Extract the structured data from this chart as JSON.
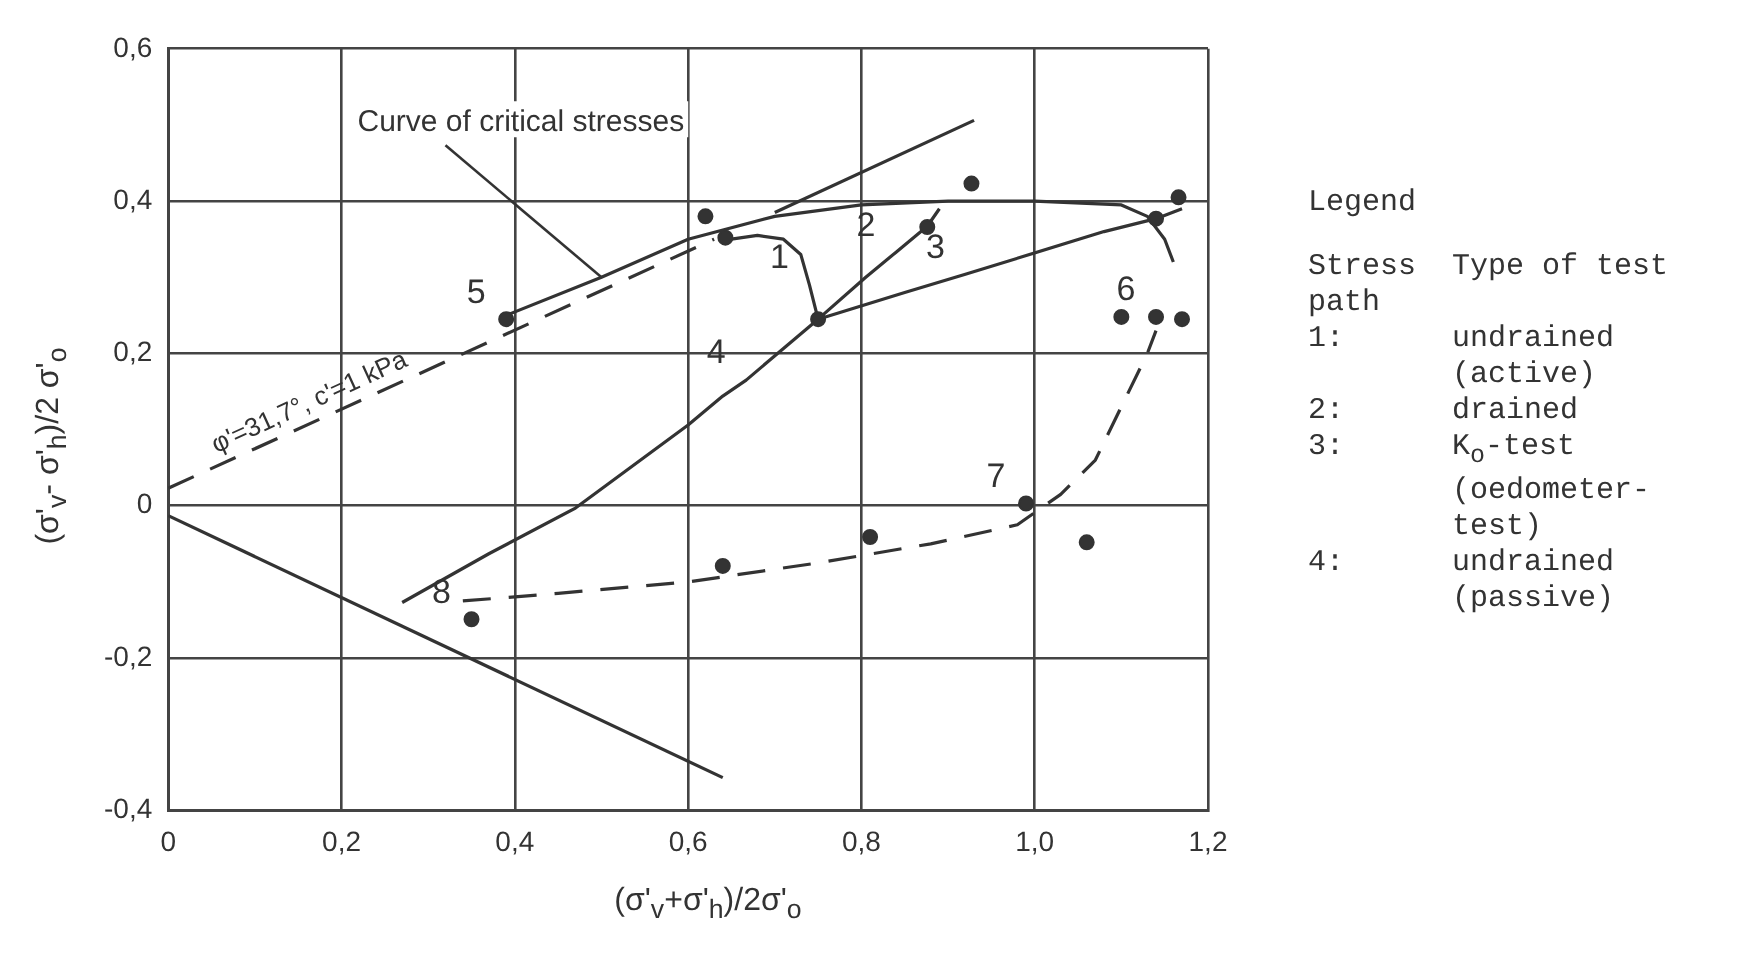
{
  "chart_data": {
    "type": "line",
    "xlabel": "(σ'$_{v}$+σ'$_{h}$)/2σ'$_{o}$",
    "ylabel": "(σ'$_{v}$- σ'$_{h}$)/2 σ'$_{o}$",
    "xlim": [
      0,
      1.2
    ],
    "ylim": [
      -0.4,
      0.6
    ],
    "xticks": [
      0,
      {
        "value": 0.2,
        "label": "0,2"
      },
      {
        "value": 0.4,
        "label": "0,4"
      },
      {
        "value": 0.6,
        "label": "0,6"
      },
      {
        "value": 0.8,
        "label": "0,8"
      },
      {
        "value": 1.0,
        "label": "1,0"
      },
      {
        "value": 1.2,
        "label": "1,2"
      }
    ],
    "yticks": [
      {
        "value": -0.4,
        "label": "-0,4"
      },
      {
        "value": -0.2,
        "label": "-0,2"
      },
      0,
      {
        "value": 0.2,
        "label": "0,2"
      },
      {
        "value": 0.4,
        "label": "0,4"
      },
      {
        "value": 0.6,
        "label": "0,6"
      }
    ],
    "grid": true,
    "series": [
      {
        "line_style": "dashed",
        "name": "φ'=31,7°, c'=1 kPa",
        "color": "#333333",
        "x": [
          0,
          0.63
        ],
        "values": [
          0.023,
          0.35
        ]
      },
      {
        "name": "Curve of critical stresses",
        "color": "#333333",
        "x": [
          0.39,
          0.5,
          0.6,
          0.7,
          0.8,
          0.9,
          1.0,
          1.1,
          1.13,
          1.15,
          1.16
        ],
        "values": [
          0.25,
          0.3,
          0.35,
          0.38,
          0.395,
          0.4,
          0.4,
          0.395,
          0.38,
          0.35,
          0.32
        ]
      },
      {
        "color": "#333333",
        "x": [
          0.7,
          0.93
        ],
        "values": [
          0.385,
          0.506
        ]
      },
      {
        "color": "#333333",
        "x": [
          0,
          0.64
        ],
        "values": [
          -0.013,
          -0.357
        ]
      },
      {
        "color": "#333333",
        "x": [
          0.75,
          0.74,
          0.73,
          0.71,
          0.68,
          0.65
        ],
        "values": [
          0.245,
          0.29,
          0.33,
          0.35,
          0.355,
          0.35
        ]
      },
      {
        "color": "#333333",
        "x": [
          0.75,
          0.805,
          0.84,
          0.876,
          0.89
        ],
        "values": [
          0.245,
          0.3,
          0.333,
          0.367,
          0.39
        ]
      },
      {
        "color": "#333333",
        "x": [
          0.75,
          0.85,
          0.92,
          1.08,
          1.14,
          1.17
        ],
        "values": [
          0.245,
          0.28,
          0.304,
          0.36,
          0.377,
          0.39
        ]
      },
      {
        "color": "#333333",
        "x": [
          0.75,
          0.667,
          0.64,
          0.6,
          0.47,
          0.37,
          0.27
        ],
        "values": [
          0.245,
          0.165,
          0.144,
          0.106,
          -0.003,
          -0.063,
          -0.127
        ]
      },
      {
        "line_style": "dashed",
        "color": "#333333",
        "x": [
          0.34,
          0.45,
          0.6,
          0.75,
          0.88,
          0.98,
          1.03,
          1.07,
          1.1,
          1.13,
          1.14
        ],
        "values": [
          -0.125,
          -0.115,
          -0.1,
          -0.075,
          -0.05,
          -0.025,
          0.015,
          0.06,
          0.13,
          0.2,
          0.23
        ]
      },
      {
        "type": "scatter",
        "marker": "circle",
        "color": "#333333",
        "x": [
          0.62,
          0.643,
          0.39,
          0.75,
          0.876,
          0.927,
          1.166,
          1.14,
          1.1,
          1.14,
          1.17,
          0.35,
          0.64,
          0.81,
          0.99,
          1.06
        ],
        "values": [
          0.38,
          0.352,
          0.245,
          0.245,
          0.366,
          0.423,
          0.405,
          0.377,
          0.248,
          0.248,
          0.245,
          -0.149,
          -0.079,
          -0.041,
          0.003,
          -0.048
        ]
      }
    ],
    "annotations": [
      {
        "text": "1",
        "x": 0.74,
        "y": 0.29
      },
      {
        "text": "2",
        "x": 0.84,
        "y": 0.333
      },
      {
        "text": "3",
        "x": 0.92,
        "y": 0.304
      },
      {
        "text": "4",
        "x": 0.667,
        "y": 0.165
      },
      {
        "text": "5",
        "x": 0.39,
        "y": 0.245
      },
      {
        "text": "6",
        "x": 1.14,
        "y": 0.248
      },
      {
        "text": "7",
        "x": 0.99,
        "y": 0.003
      },
      {
        "text": "8",
        "x": 0.35,
        "y": -0.149
      },
      "Legend",
      "Stress path",
      "Type of test",
      "1:",
      "undrained (active)",
      "2:",
      "drained",
      "3:",
      "K$_{o}$-test (oedometer-test)",
      "4:",
      "undrained (passive)"
    ]
  }
}
